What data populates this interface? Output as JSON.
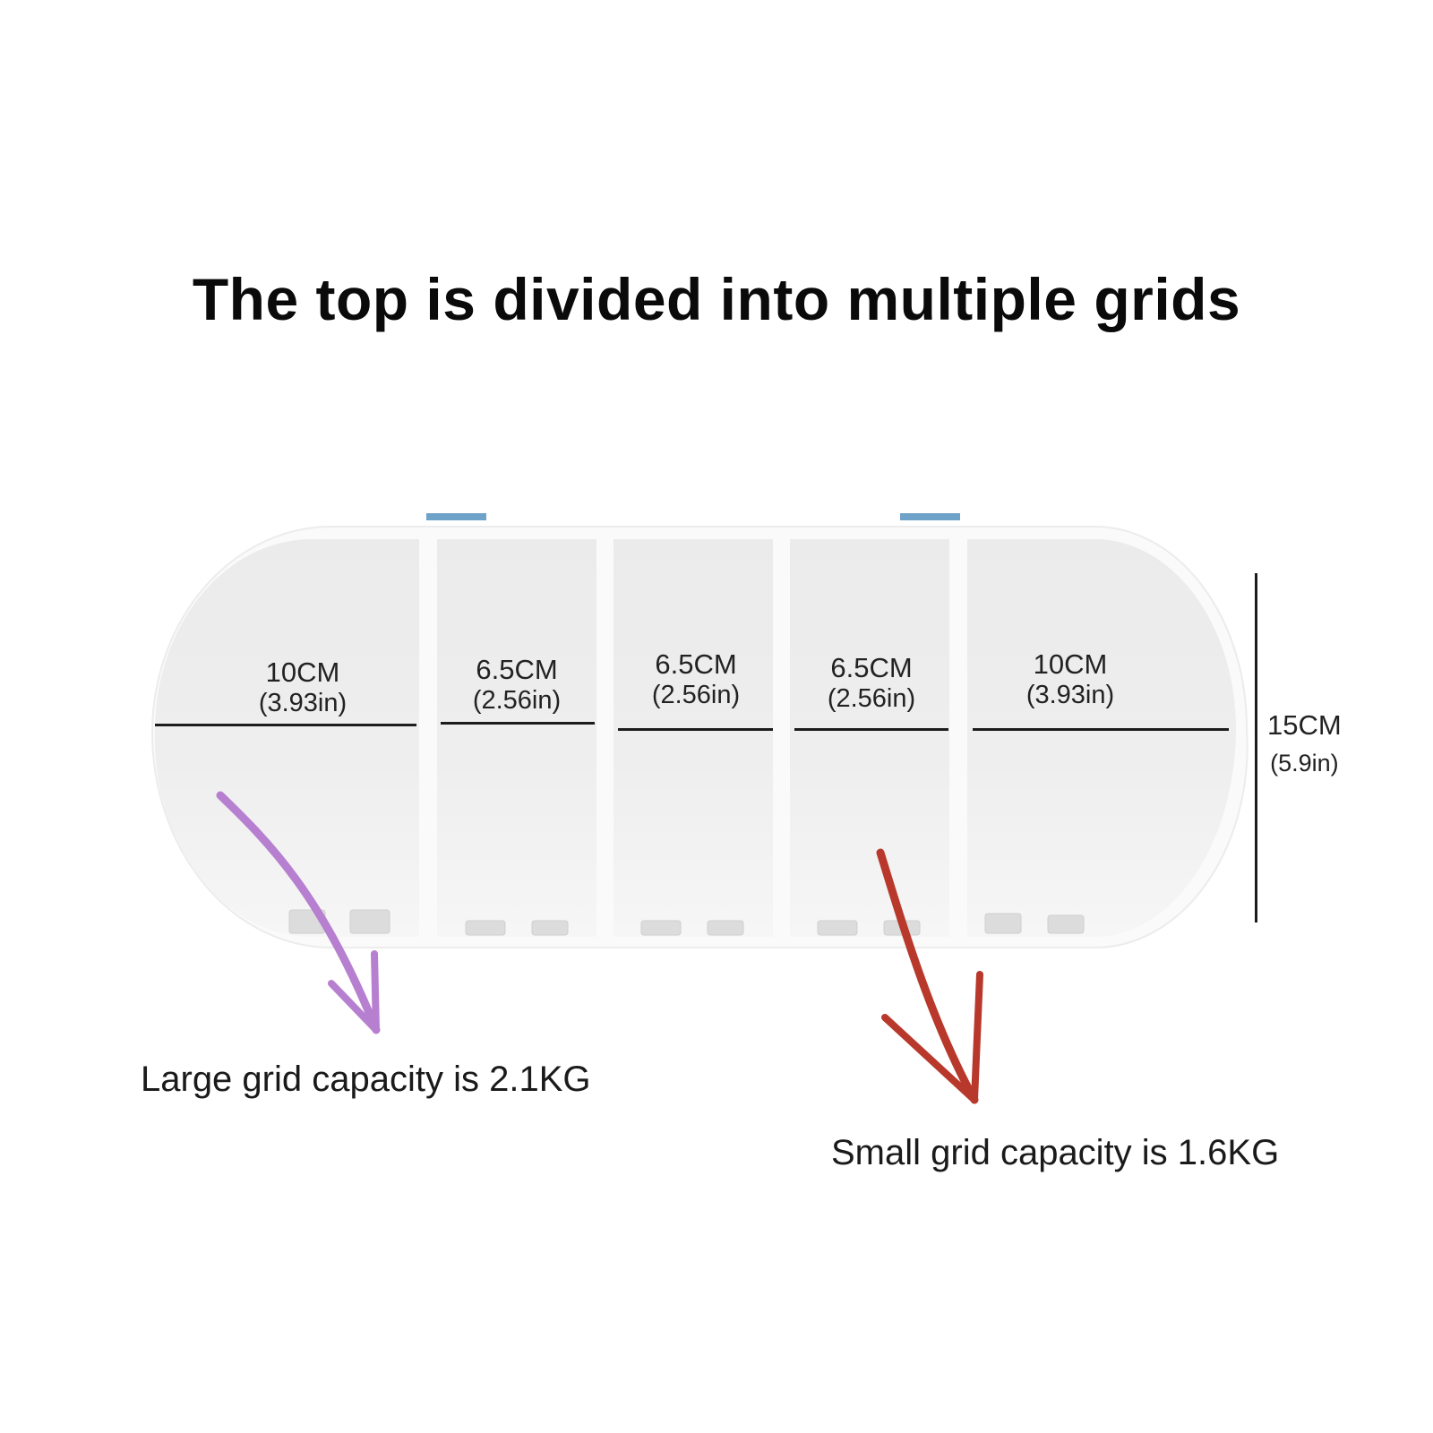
{
  "title": "The top is divided into multiple grids",
  "compartments": [
    {
      "cm": "10CM",
      "inch": "(3.93in)"
    },
    {
      "cm": "6.5CM",
      "inch": "(2.56in)"
    },
    {
      "cm": "6.5CM",
      "inch": "(2.56in)"
    },
    {
      "cm": "6.5CM",
      "inch": "(2.56in)"
    },
    {
      "cm": "10CM",
      "inch": "(3.93in)"
    }
  ],
  "height": {
    "cm": "15CM",
    "inch": "(5.9in)"
  },
  "captions": {
    "large": "Large grid capacity is 2.1KG",
    "small": "Small grid capacity is 1.6KG"
  },
  "colors": {
    "large_arrow": "#b77fcf",
    "small_arrow": "#b8392b",
    "latch": "#6fa2c9",
    "compartment_fill": "#ededed",
    "tray_frame": "#fafafa"
  }
}
